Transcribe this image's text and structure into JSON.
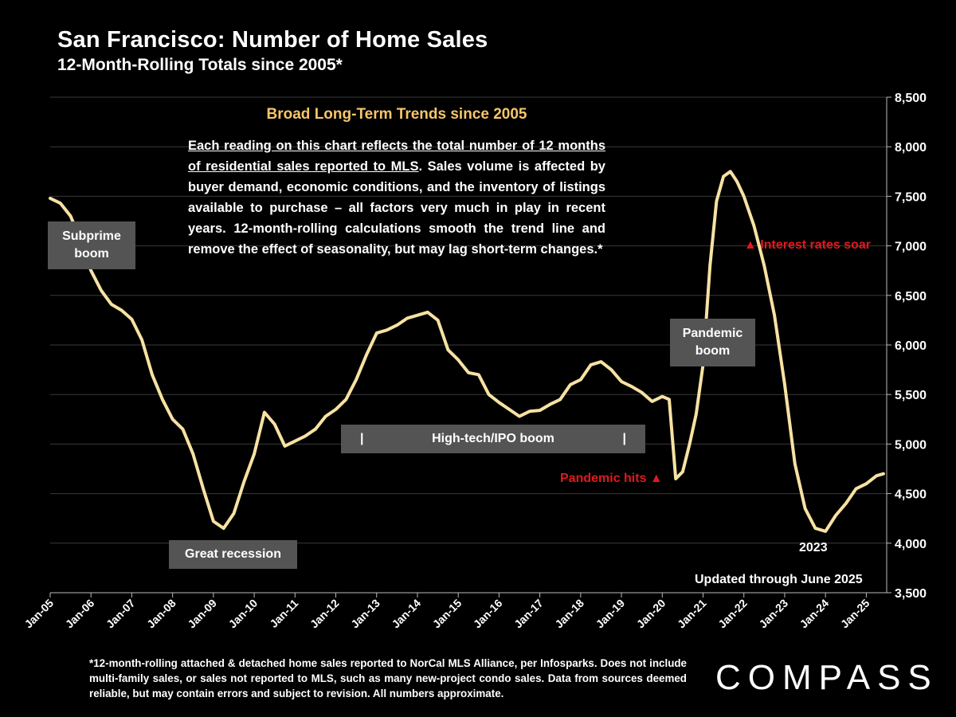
{
  "title": "San Francisco:  Number of Home Sales",
  "subtitle": "12-Month-Rolling Totals since 2005*",
  "box": {
    "title": "Broad Long-Term Trends since 2005",
    "underlined": "Each reading on this chart reflects the total number of 12 months of residential sales reported to MLS",
    "rest": ". Sales volume is affected by buyer demand, economic conditions, and the inventory of listings available to purchase – all factors very much in play in recent years. 12-month-rolling calculations smooth the trend line and remove the effect of seasonality, but may lag short-term changes.*"
  },
  "annotations": {
    "subprime": "Subprime boom",
    "great_recession": "Great recession",
    "high_tech": "High-tech/IPO boom",
    "high_tech_bar": "|",
    "pandemic_boom": "Pandemic boom",
    "pandemic_hits": "Pandemic hits ▲",
    "interest_rates": "▲ Interest rates soar",
    "year_2023": "2023",
    "updated": "Updated through June 2025"
  },
  "footnote": "*12-month-rolling attached & detached home sales reported to NorCal MLS Alliance, per Infosparks. Does not include multi-family sales, or sales not reported to MLS, such as many new-project condo sales. Data from sources deemed reliable, but may contain errors and subject to revision. All numbers approximate.",
  "logo": "COMPASS",
  "colors": {
    "line": "#f7e2a3",
    "accent_title": "#f6c66a",
    "red": "#e0191d",
    "tag_bg": "#545454"
  },
  "chart_data": {
    "type": "line",
    "y_axis_side": "right",
    "ylim": [
      3500,
      8500
    ],
    "yticks": [
      "3,500",
      "4,000",
      "4,500",
      "5,000",
      "5,500",
      "6,000",
      "6,500",
      "7,000",
      "7,500",
      "8,000",
      "8,500"
    ],
    "ytick_values": [
      3500,
      4000,
      4500,
      5000,
      5500,
      6000,
      6500,
      7000,
      7500,
      8000,
      8500
    ],
    "xticks": [
      "Jan-05",
      "Jan-06",
      "Jan-07",
      "Jan-08",
      "Jan-09",
      "Jan-10",
      "Jan-11",
      "Jan-12",
      "Jan-13",
      "Jan-14",
      "Jan-15",
      "Jan-16",
      "Jan-17",
      "Jan-18",
      "Jan-19",
      "Jan-20",
      "Jan-21",
      "Jan-22",
      "Jan-23",
      "Jan-24",
      "Jan-25"
    ],
    "xlim": [
      "Jan-05",
      "Jun-25"
    ],
    "grid": true,
    "series": [
      {
        "x": [
          2005.0,
          2005.25,
          2005.5,
          2005.75,
          2006.0,
          2006.25,
          2006.5,
          2006.75,
          2007.0,
          2007.25,
          2007.5,
          2007.75,
          2008.0,
          2008.25,
          2008.5,
          2008.75,
          2009.0,
          2009.25,
          2009.5,
          2009.75,
          2010.0,
          2010.25,
          2010.5,
          2010.75,
          2011.0,
          2011.25,
          2011.5,
          2011.75,
          2012.0,
          2012.25,
          2012.5,
          2012.75,
          2013.0,
          2013.25,
          2013.5,
          2013.75,
          2014.0,
          2014.25,
          2014.5,
          2014.75,
          2015.0,
          2015.25,
          2015.5,
          2015.75,
          2016.0,
          2016.25,
          2016.5,
          2016.75,
          2017.0,
          2017.25,
          2017.5,
          2017.75,
          2018.0,
          2018.25,
          2018.5,
          2018.75,
          2019.0,
          2019.25,
          2019.5,
          2019.75,
          2020.0,
          2020.17,
          2020.33,
          2020.5,
          2020.67,
          2020.83,
          2021.0,
          2021.17,
          2021.33,
          2021.5,
          2021.67,
          2021.83,
          2022.0,
          2022.25,
          2022.5,
          2022.75,
          2023.0,
          2023.25,
          2023.5,
          2023.75,
          2024.0,
          2024.25,
          2024.5,
          2024.75,
          2025.0,
          2025.25,
          2025.42
        ],
        "values": [
          7480,
          7430,
          7300,
          7050,
          6750,
          6550,
          6410,
          6350,
          6260,
          6050,
          5700,
          5450,
          5250,
          5150,
          4900,
          4550,
          4220,
          4150,
          4300,
          4620,
          4900,
          5320,
          5200,
          4980,
          5030,
          5080,
          5150,
          5280,
          5350,
          5450,
          5650,
          5900,
          6120,
          6150,
          6200,
          6270,
          6300,
          6330,
          6250,
          5950,
          5850,
          5720,
          5700,
          5500,
          5420,
          5350,
          5280,
          5330,
          5340,
          5400,
          5450,
          5600,
          5650,
          5800,
          5830,
          5750,
          5630,
          5580,
          5520,
          5430,
          5480,
          5450,
          4650,
          4720,
          5000,
          5300,
          5800,
          6800,
          7450,
          7700,
          7750,
          7650,
          7500,
          7200,
          6800,
          6300,
          5600,
          4800,
          4350,
          4150,
          4120,
          4280,
          4400,
          4550,
          4600,
          4680,
          4700
        ]
      }
    ]
  }
}
